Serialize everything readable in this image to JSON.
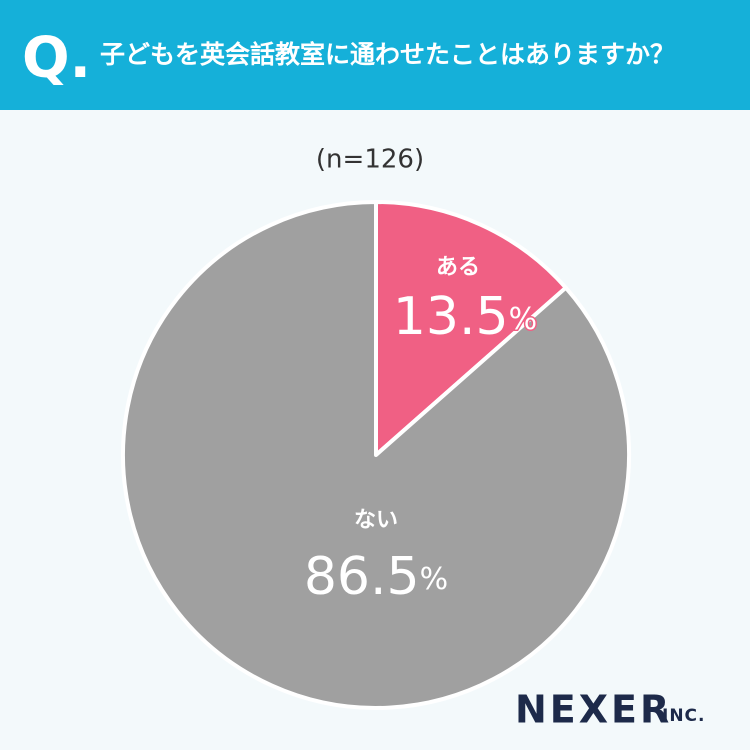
{
  "header_mark": "Q.",
  "chart_data": {
    "type": "pie",
    "title": "子どもを英会話教室に通わせたことはありますか？",
    "subtitle": "(n=126)",
    "categories": [
      "ある",
      "ない"
    ],
    "values": [
      13.5,
      86.5
    ],
    "value_labels": [
      "13.5%",
      "86.5%"
    ],
    "colors": [
      "#f06084",
      "#a0a0a0"
    ]
  },
  "logo": {
    "name": "NEXER",
    "suffix": "INC."
  }
}
